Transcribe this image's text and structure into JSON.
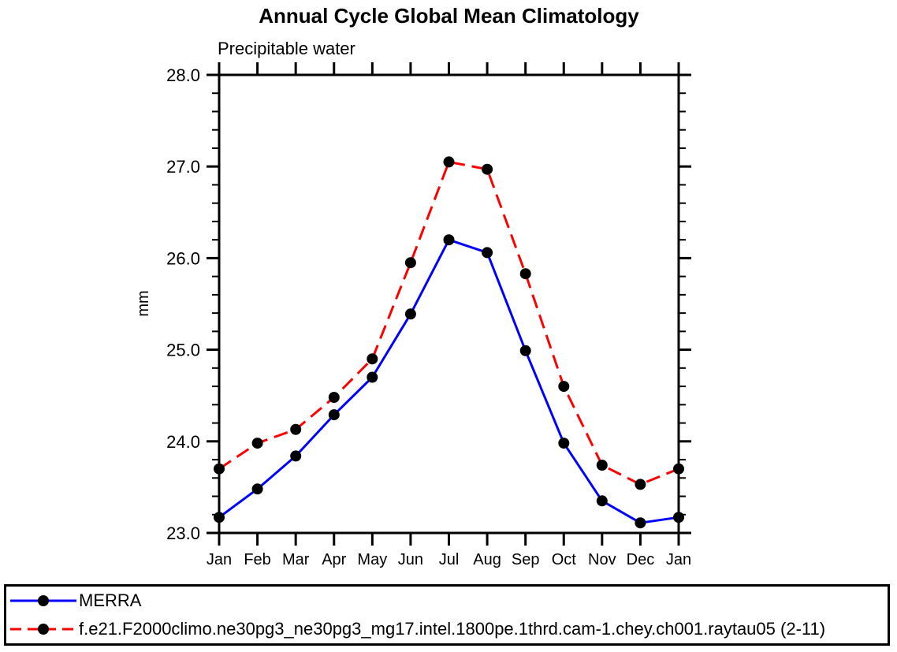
{
  "page": {
    "background": "#ffffff",
    "frame_color": "#000000"
  },
  "chart_data": {
    "type": "line",
    "title": "Annual Cycle Global Mean Climatology",
    "subtitle": "Precipitable water",
    "xlabel": "",
    "ylabel": "mm",
    "categories": [
      "Jan",
      "Feb",
      "Mar",
      "Apr",
      "May",
      "Jun",
      "Jul",
      "Aug",
      "Sep",
      "Oct",
      "Nov",
      "Dec",
      "Jan"
    ],
    "ylim": [
      23.0,
      28.0
    ],
    "y_major_step": 1.0,
    "y_minor_step": 0.2,
    "y_tick_labels": [
      "23.0",
      "24.0",
      "25.0",
      "26.0",
      "27.0",
      "28.0"
    ],
    "grid": false,
    "ticks_direction": "out",
    "legend_position": "bottom-box",
    "series": [
      {
        "name": "MERRA",
        "color": "#0000ff",
        "line_style": "solid",
        "marker": "filled-circle",
        "marker_color": "#000000",
        "values": [
          23.17,
          23.48,
          23.84,
          24.29,
          24.7,
          25.39,
          26.2,
          26.06,
          24.99,
          23.98,
          23.35,
          23.11,
          23.17
        ]
      },
      {
        "name": "f.e21.F2000climo.ne30pg3_ne30pg3_mg17.intel.1800pe.1thrd.cam-1.chey.ch001.raytau05 (2-11)",
        "color": "#ff0000",
        "line_style": "dashed",
        "marker": "filled-circle",
        "marker_color": "#000000",
        "values": [
          23.7,
          23.98,
          24.13,
          24.48,
          24.9,
          25.95,
          27.05,
          26.97,
          25.83,
          24.6,
          23.74,
          23.53,
          23.7
        ]
      }
    ]
  }
}
